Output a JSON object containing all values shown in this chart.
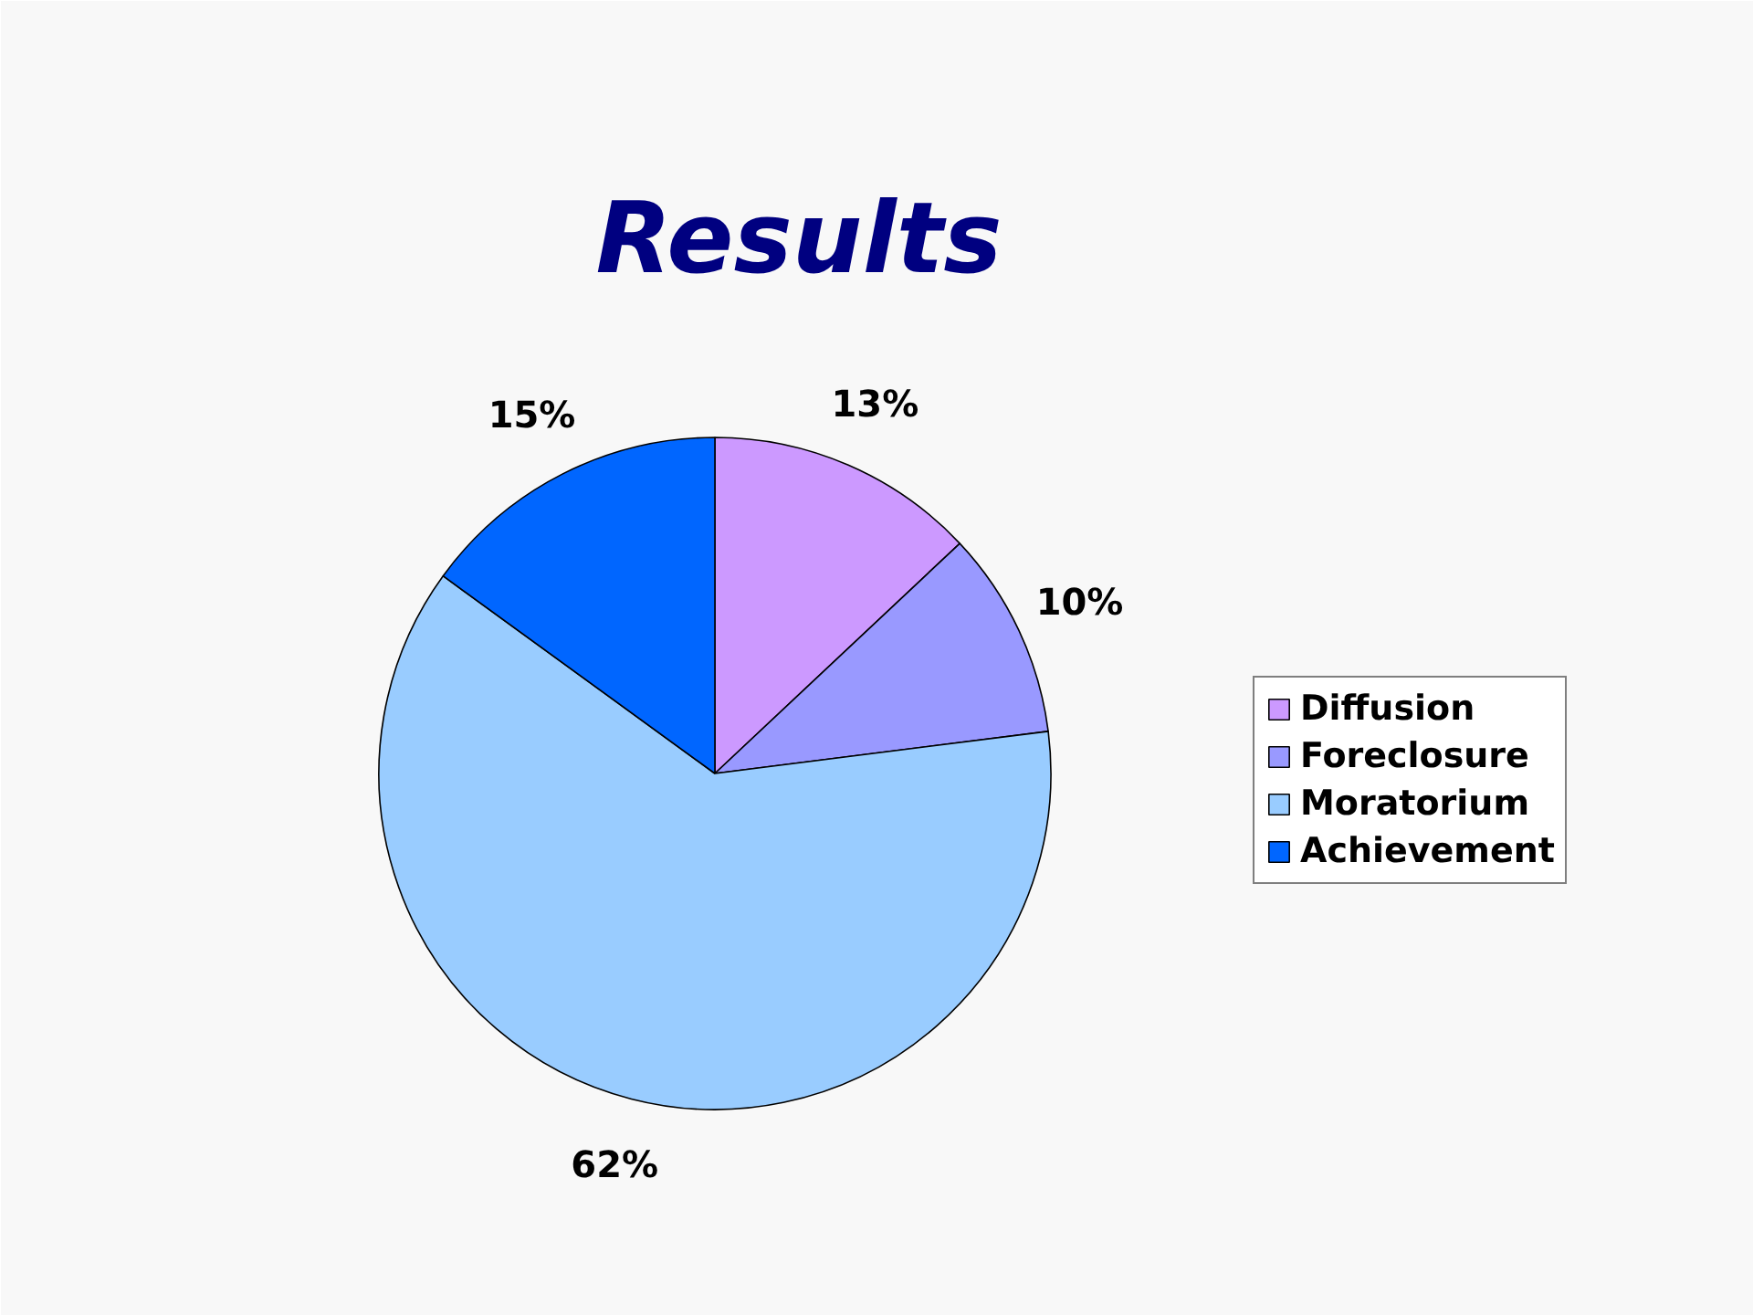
{
  "chart_data": {
    "type": "pie",
    "title": "Results",
    "categories": [
      "Diffusion",
      "Foreclosure",
      "Moratorium",
      "Achievement"
    ],
    "values": [
      13,
      10,
      62,
      15
    ],
    "colors": [
      "#cc99ff",
      "#9999ff",
      "#99ccff",
      "#0066ff"
    ],
    "value_labels": [
      "13%",
      "10%",
      "62%",
      "15%"
    ],
    "legend": "right"
  }
}
